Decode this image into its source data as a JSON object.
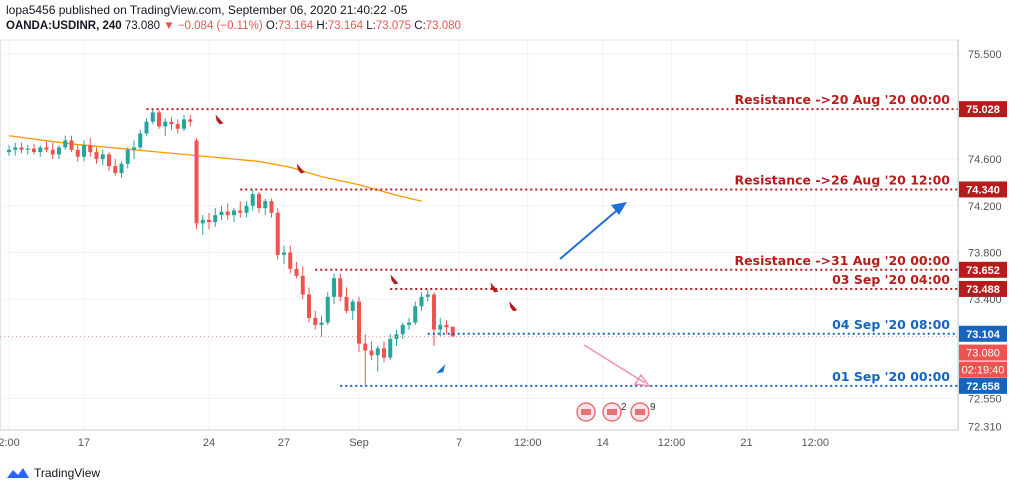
{
  "header": {
    "line1": "lopa5456 published on TradingView.com, September 06, 2020 21:40:22 -05",
    "symbol": "OANDA:USDINR, 240",
    "last": "73.080",
    "change": "▼ −0.084 (−0.11%)",
    "o_label": "O:",
    "o_val": "73.164",
    "h_label": "H:",
    "h_val": "73.164",
    "l_label": "L:",
    "l_val": "73.075",
    "c_label": "C:",
    "c_val": "73.080"
  },
  "footer": {
    "brand": "TradingView"
  },
  "colors": {
    "up": "#26a69a",
    "down": "#ef5350",
    "resistance": "#b71c1c",
    "support": "#1565c0",
    "ma": "#ff9800",
    "blue_arrow": "#1e6fd9",
    "pink_arrow": "#f48fb1"
  },
  "chart_data": {
    "type": "candlestick",
    "ylim": [
      72.28,
      75.62
    ],
    "price_ticks": [
      "75.500",
      "74.600",
      "74.200",
      "73.800",
      "73.400",
      "72.550",
      "72.310"
    ],
    "time_ticks": [
      {
        "label": "2:00",
        "i": 0
      },
      {
        "label": "17",
        "i": 12
      },
      {
        "label": "24",
        "i": 32
      },
      {
        "label": "27",
        "i": 44
      },
      {
        "label": "Sep",
        "i": 56
      },
      {
        "label": "7",
        "i": 72
      },
      {
        "label": "12:00",
        "i": 83
      },
      {
        "label": "14",
        "i": 95
      },
      {
        "label": "12:00",
        "i": 106
      },
      {
        "label": "21",
        "i": 118
      },
      {
        "label": "12:00",
        "i": 129
      }
    ],
    "candles": [
      [
        74.66,
        74.72,
        74.63,
        74.68
      ],
      [
        74.68,
        74.74,
        74.63,
        74.7
      ],
      [
        74.7,
        74.74,
        74.65,
        74.68
      ],
      [
        74.68,
        74.72,
        74.64,
        74.69
      ],
      [
        74.69,
        74.73,
        74.64,
        74.66
      ],
      [
        74.66,
        74.72,
        74.62,
        74.7
      ],
      [
        74.7,
        74.75,
        74.66,
        74.68
      ],
      [
        74.68,
        74.74,
        74.6,
        74.64
      ],
      [
        74.64,
        74.72,
        74.6,
        74.7
      ],
      [
        74.7,
        74.8,
        74.68,
        74.76
      ],
      [
        74.76,
        74.8,
        74.66,
        74.68
      ],
      [
        74.68,
        74.72,
        74.58,
        74.62
      ],
      [
        74.62,
        74.76,
        74.58,
        74.72
      ],
      [
        74.72,
        74.78,
        74.62,
        74.66
      ],
      [
        74.66,
        74.7,
        74.56,
        74.6
      ],
      [
        74.6,
        74.68,
        74.55,
        74.64
      ],
      [
        74.64,
        74.66,
        74.5,
        74.54
      ],
      [
        74.54,
        74.6,
        74.46,
        74.48
      ],
      [
        74.48,
        74.58,
        74.44,
        74.56
      ],
      [
        74.56,
        74.7,
        74.52,
        74.68
      ],
      [
        74.68,
        74.76,
        74.6,
        74.7
      ],
      [
        74.7,
        74.85,
        74.68,
        74.82
      ],
      [
        74.82,
        74.95,
        74.8,
        74.92
      ],
      [
        74.92,
        75.03,
        74.9,
        75.0
      ],
      [
        75.0,
        75.02,
        74.86,
        74.88
      ],
      [
        74.88,
        74.95,
        74.8,
        74.92
      ],
      [
        74.92,
        74.96,
        74.85,
        74.9
      ],
      [
        74.9,
        74.94,
        74.82,
        74.86
      ],
      [
        74.86,
        74.98,
        74.84,
        74.94
      ],
      [
        74.94,
        74.98,
        74.88,
        74.92
      ],
      [
        74.76,
        74.78,
        74.0,
        74.05
      ],
      [
        74.05,
        74.12,
        73.95,
        74.08
      ],
      [
        74.08,
        74.14,
        74.0,
        74.06
      ],
      [
        74.06,
        74.18,
        74.02,
        74.12
      ],
      [
        74.12,
        74.2,
        74.08,
        74.15
      ],
      [
        74.15,
        74.22,
        74.08,
        74.12
      ],
      [
        74.12,
        74.18,
        74.06,
        74.16
      ],
      [
        74.16,
        74.24,
        74.1,
        74.14
      ],
      [
        74.14,
        74.24,
        74.1,
        74.2
      ],
      [
        74.2,
        74.34,
        74.16,
        74.3
      ],
      [
        74.3,
        74.32,
        74.14,
        74.18
      ],
      [
        74.18,
        74.26,
        74.12,
        74.24
      ],
      [
        74.24,
        74.26,
        74.1,
        74.14
      ],
      [
        74.14,
        74.18,
        73.74,
        73.78
      ],
      [
        73.78,
        73.86,
        73.7,
        73.8
      ],
      [
        73.8,
        73.86,
        73.62,
        73.66
      ],
      [
        73.66,
        73.72,
        73.58,
        73.6
      ],
      [
        73.6,
        73.68,
        73.4,
        73.44
      ],
      [
        73.44,
        73.5,
        73.2,
        73.24
      ],
      [
        73.24,
        73.3,
        73.14,
        73.18
      ],
      [
        73.18,
        73.26,
        73.08,
        73.2
      ],
      [
        73.2,
        73.46,
        73.18,
        73.42
      ],
      [
        73.42,
        73.62,
        73.36,
        73.58
      ],
      [
        73.58,
        73.62,
        73.38,
        73.42
      ],
      [
        73.42,
        73.5,
        73.28,
        73.3
      ],
      [
        73.3,
        73.4,
        73.22,
        73.38
      ],
      [
        73.38,
        73.42,
        72.95,
        73.02
      ],
      [
        73.02,
        73.1,
        72.66,
        72.96
      ],
      [
        72.96,
        73.04,
        72.88,
        72.92
      ],
      [
        72.92,
        73.0,
        72.78,
        72.98
      ],
      [
        72.98,
        73.04,
        72.86,
        72.9
      ],
      [
        72.9,
        73.1,
        72.88,
        73.06
      ],
      [
        73.06,
        73.14,
        73.0,
        73.1
      ],
      [
        73.1,
        73.2,
        73.06,
        73.18
      ],
      [
        73.18,
        73.24,
        73.14,
        73.2
      ],
      [
        73.2,
        73.38,
        73.18,
        73.34
      ],
      [
        73.34,
        73.46,
        73.3,
        73.42
      ],
      [
        73.42,
        73.48,
        73.38,
        73.44
      ],
      [
        73.44,
        73.46,
        73.0,
        73.14
      ],
      [
        73.14,
        73.24,
        73.08,
        73.18
      ],
      [
        73.18,
        73.22,
        73.1,
        73.16
      ],
      [
        73.164,
        73.164,
        73.075,
        73.08
      ]
    ],
    "ma": [
      [
        0,
        74.8
      ],
      [
        10,
        74.73
      ],
      [
        20,
        74.68
      ],
      [
        30,
        74.63
      ],
      [
        40,
        74.58
      ],
      [
        45,
        74.53
      ],
      [
        50,
        74.45
      ],
      [
        56,
        74.38
      ],
      [
        62,
        74.29
      ],
      [
        66,
        74.24
      ]
    ],
    "levels": [
      {
        "label": "Resistance ->20 Aug '20 00:00",
        "value": "75.028",
        "price": 75.028,
        "kind": "resistance",
        "start": 22
      },
      {
        "label": "Resistance ->26 Aug '20 12:00",
        "value": "74.340",
        "price": 74.34,
        "kind": "resistance",
        "start": 37
      },
      {
        "label": "Resistance ->31 Aug '20 00:00",
        "value": "73.652",
        "price": 73.652,
        "kind": "resistance",
        "start": 49
      },
      {
        "label": "03 Sep '20 04:00",
        "value": "73.488",
        "price": 73.488,
        "kind": "resistance",
        "start": 61
      },
      {
        "label": "04 Sep '20 08:00",
        "value": "73.104",
        "price": 73.104,
        "kind": "support",
        "start": 67
      },
      {
        "label": "01 Sep '20 00:00",
        "value": "72.658",
        "price": 72.658,
        "kind": "support",
        "start": 53
      }
    ],
    "last_price": {
      "value": "73.080",
      "price": 73.08
    },
    "countdown": "02:19:40",
    "events": {
      "label_a": "2",
      "label_b": "9"
    }
  }
}
